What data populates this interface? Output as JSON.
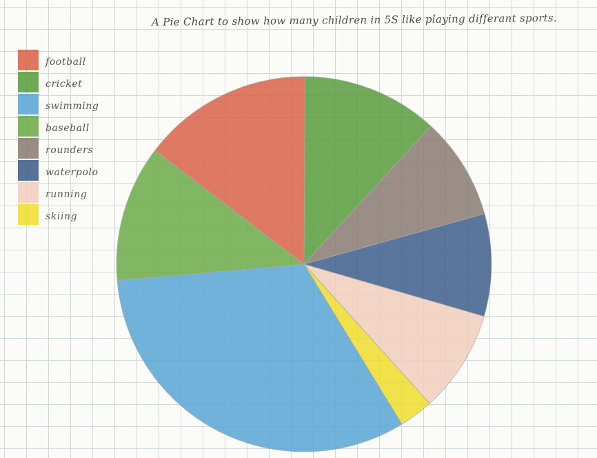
{
  "chart_data": {
    "type": "pie",
    "title": "A Pie Chart to show how many children in 5S like playing differant sports.",
    "legend_position": "top-left",
    "slices": [
      {
        "label": "football",
        "value": 5,
        "color": "#d9644a"
      },
      {
        "label": "cricket",
        "value": 4,
        "color": "#5a9e3e"
      },
      {
        "label": "swimming",
        "value": 11,
        "color": "#5aa6d6"
      },
      {
        "label": "baseball",
        "value": 4,
        "color": "#6cab48"
      },
      {
        "label": "rounders",
        "value": 3,
        "color": "#8a7c74"
      },
      {
        "label": "waterpolo",
        "value": 3,
        "color": "#3f5f8c"
      },
      {
        "label": "running",
        "value": 3,
        "color": "#f2cfbd"
      },
      {
        "label": "skiing",
        "value": 1,
        "color": "#f0de2e"
      }
    ],
    "drawing_order": [
      "cricket",
      "rounders",
      "waterpolo",
      "running",
      "skiing",
      "swimming",
      "baseball",
      "football"
    ]
  }
}
